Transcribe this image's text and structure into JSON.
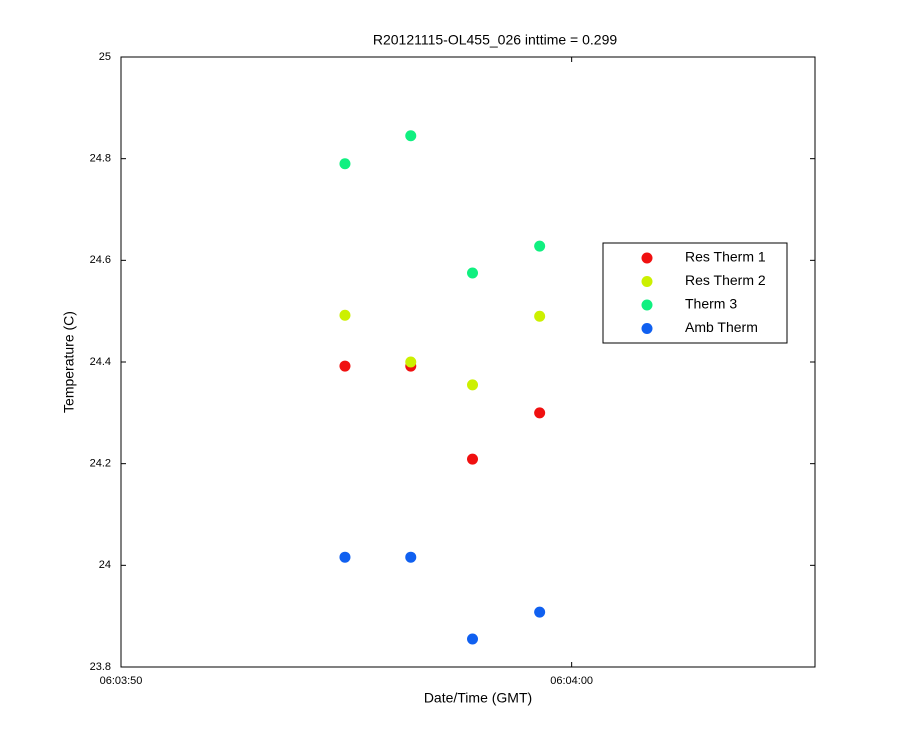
{
  "chart_data": {
    "type": "scatter",
    "title": "R20121115-OL455_026 inttime = 0.299",
    "x_label": "Date/Time (GMT)",
    "y_label": "Temperature (C)",
    "x": [
      21834.97,
      21836.43,
      21837.8,
      21839.29
    ],
    "series": [
      {
        "name": "Res Therm 1",
        "color": "#f01010",
        "values": [
          24.392,
          24.392,
          24.209,
          24.3
        ]
      },
      {
        "name": "Res Therm 2",
        "color": "#ccf000",
        "values": [
          24.492,
          24.4,
          24.355,
          24.49
        ]
      },
      {
        "name": "Therm 3",
        "color": "#10f080",
        "values": [
          24.79,
          24.845,
          24.575,
          24.628
        ]
      },
      {
        "name": "Amb Therm",
        "color": "#1060f0",
        "values": [
          24.016,
          24.016,
          23.855,
          23.908
        ]
      }
    ],
    "xlim": [
      21830,
      21845.4
    ],
    "xticks": [
      {
        "value": 21830,
        "label": "06:03:50"
      },
      {
        "value": 21840,
        "label": "06:04:00"
      }
    ],
    "ylim": [
      23.8,
      25
    ],
    "yticks": [
      23.8,
      24,
      24.2,
      24.4,
      24.6,
      24.8,
      25
    ],
    "legend": "right"
  }
}
